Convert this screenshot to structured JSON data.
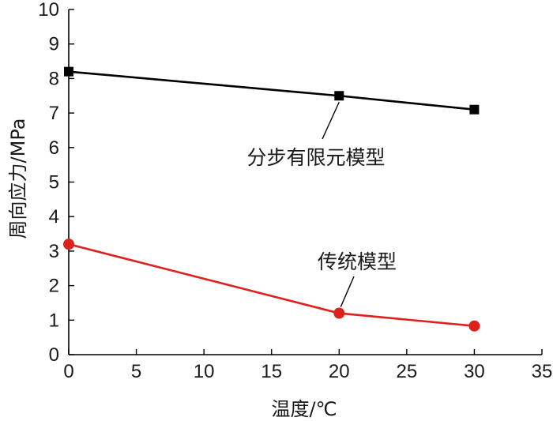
{
  "chart_data": {
    "type": "line",
    "xlabel": "温度/℃",
    "ylabel": "周向应力/MPa",
    "xlim": [
      0,
      35
    ],
    "ylim": [
      0,
      10
    ],
    "xticks": [
      0,
      5,
      10,
      15,
      20,
      25,
      30,
      35
    ],
    "yticks": [
      0,
      1,
      2,
      3,
      4,
      5,
      6,
      7,
      8,
      9,
      10
    ],
    "grid": false,
    "series": [
      {
        "name": "分步有限元模型",
        "x": [
          0,
          20,
          30
        ],
        "values": [
          8.2,
          7.5,
          7.1
        ],
        "color": "#000000",
        "marker": "square"
      },
      {
        "name": "传统模型",
        "x": [
          0,
          20,
          30
        ],
        "values": [
          3.2,
          1.2,
          0.83
        ],
        "color": "#e0201b",
        "marker": "circle"
      }
    ],
    "annotations": [
      {
        "text": "分步有限元模型",
        "series": 0,
        "point_index": 1
      },
      {
        "text": "传统模型",
        "series": 1,
        "point_index": 1
      }
    ]
  }
}
